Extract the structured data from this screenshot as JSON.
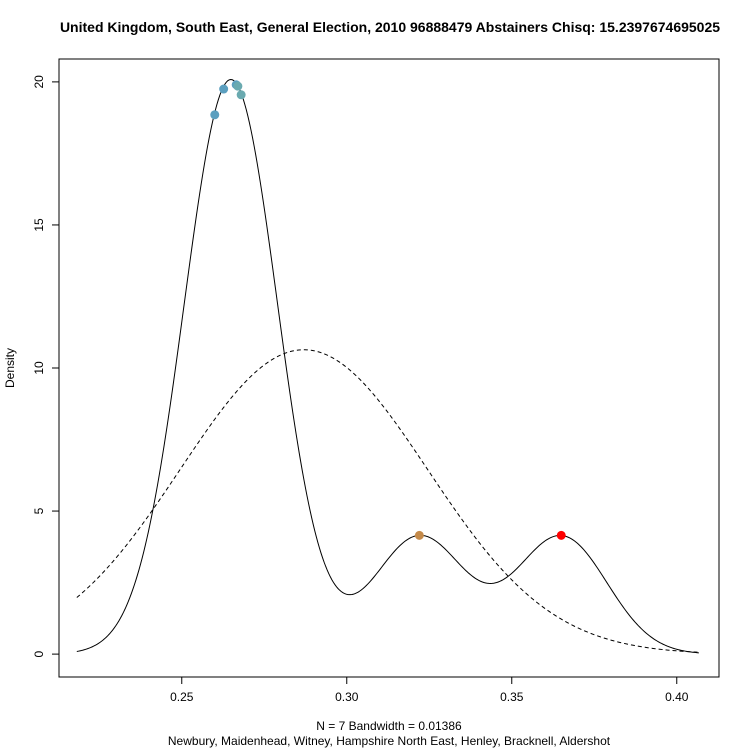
{
  "chart_data": {
    "type": "line",
    "title": "United Kingdom, South East, General Election, 2010 96888479 Abstainers Chisq: 15.2397674695025",
    "ylabel": "Density",
    "xlabel_line1": "N = 7   Bandwidth = 0.01386",
    "xlabel_line2": "Newbury, Maidenhead, Witney, Hampshire North East, Henley, Bracknell, Aldershot",
    "xlim": [
      0.2128,
      0.4128
    ],
    "ylim": [
      -0.8,
      20.8
    ],
    "x_ticks": [
      0.25,
      0.3,
      0.35,
      0.4
    ],
    "x_tick_labels": [
      "0.25",
      "0.30",
      "0.35",
      "0.40"
    ],
    "y_ticks": [
      0,
      5,
      10,
      15,
      20
    ],
    "y_tick_labels": [
      "0",
      "5",
      "10",
      "15",
      "20"
    ],
    "grid": false,
    "kde": {
      "bandwidth": 0.01386,
      "x_range": [
        0.2182,
        0.4067
      ],
      "line_style": "solid",
      "color": "#000000"
    },
    "normal_reference": {
      "mean": 0.287,
      "sd": 0.0375,
      "x_range": [
        0.2182,
        0.4067
      ],
      "line_style": "dashed",
      "color": "#000000"
    },
    "points": [
      {
        "x": 0.26,
        "y": 18.85,
        "color": "#5b9fbf"
      },
      {
        "x": 0.2627,
        "y": 19.75,
        "color": "#5b9fbf"
      },
      {
        "x": 0.2665,
        "y": 19.9,
        "color": "#5b9fbf"
      },
      {
        "x": 0.267,
        "y": 19.85,
        "color": "#6aaab0"
      },
      {
        "x": 0.268,
        "y": 19.55,
        "color": "#6aaab0"
      },
      {
        "x": 0.322,
        "y": 4.15,
        "color": "#c48a4a"
      },
      {
        "x": 0.365,
        "y": 4.15,
        "color": "#ff0000"
      }
    ]
  }
}
